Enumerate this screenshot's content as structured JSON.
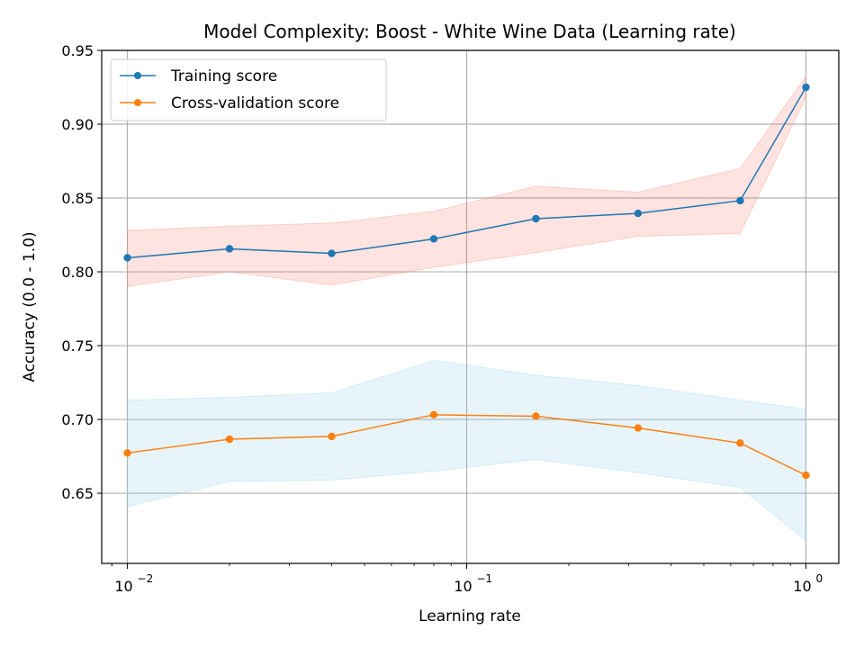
{
  "chart_data": {
    "type": "line",
    "title": "Model Complexity: Boost - White Wine Data (Learning rate)",
    "xlabel": "Learning rate",
    "ylabel": "Accuracy (0.0 - 1.0)",
    "xscale": "log",
    "xlim": [
      0.0084,
      1.25
    ],
    "ylim": [
      0.6025,
      0.95
    ],
    "grid": true,
    "legend_position": "top-left",
    "x": [
      0.01,
      0.02,
      0.04,
      0.08,
      0.16,
      0.32,
      0.64,
      1.0
    ],
    "yticks": [
      {
        "value": 0.65,
        "label": "0.65"
      },
      {
        "value": 0.7,
        "label": "0.70"
      },
      {
        "value": 0.75,
        "label": "0.75"
      },
      {
        "value": 0.8,
        "label": "0.80"
      },
      {
        "value": 0.85,
        "label": "0.85"
      },
      {
        "value": 0.9,
        "label": "0.90"
      },
      {
        "value": 0.95,
        "label": "0.95"
      }
    ],
    "xticks": [
      {
        "value": 0.01,
        "base": "10",
        "exp": "−2"
      },
      {
        "value": 0.1,
        "base": "10",
        "exp": "−1"
      },
      {
        "value": 1.0,
        "base": "10",
        "exp": "0"
      }
    ],
    "series": [
      {
        "name": "Training score",
        "color": "#1f77b4",
        "band_color": "#fa8072",
        "values": [
          0.8095,
          0.8156,
          0.8125,
          0.8223,
          0.836,
          0.8396,
          0.8482,
          0.925
        ],
        "band_low": [
          0.79,
          0.8,
          0.791,
          0.803,
          0.813,
          0.824,
          0.826,
          0.918
        ],
        "band_high": [
          0.828,
          0.831,
          0.833,
          0.841,
          0.858,
          0.854,
          0.87,
          0.932
        ]
      },
      {
        "name": "Cross-validation score",
        "color": "#ff7f0e",
        "band_color": "#87ceeb",
        "values": [
          0.6773,
          0.6866,
          0.6885,
          0.7032,
          0.7022,
          0.6942,
          0.684,
          0.6622
        ],
        "band_low": [
          0.641,
          0.658,
          0.659,
          0.665,
          0.673,
          0.664,
          0.654,
          0.618
        ],
        "band_high": [
          0.713,
          0.715,
          0.718,
          0.74,
          0.73,
          0.723,
          0.713,
          0.707
        ]
      }
    ]
  }
}
